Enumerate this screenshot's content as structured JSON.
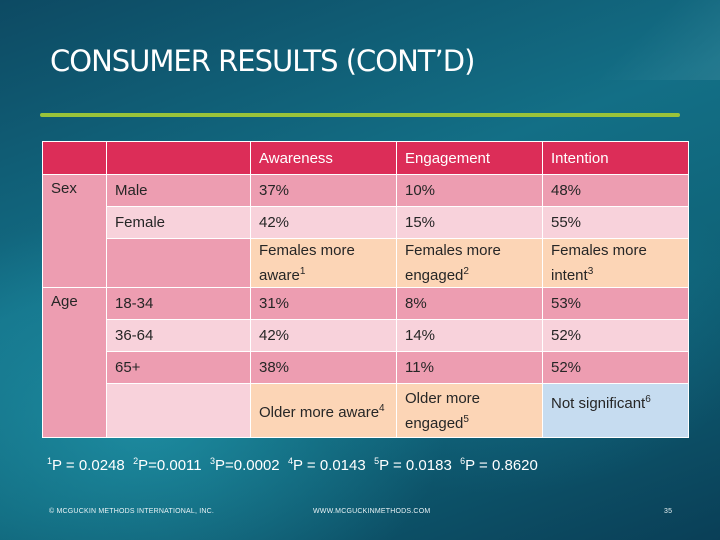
{
  "title": "CONSUMER RESULTS (CONT’D)",
  "table": {
    "headers": [
      "Awareness",
      "Engagement",
      "Intention"
    ],
    "sex": {
      "label": "Sex",
      "rows": [
        {
          "group": "Male",
          "values": [
            "37%",
            "10%",
            "48%"
          ]
        },
        {
          "group": "Female",
          "values": [
            "42%",
            "15%",
            "55%"
          ]
        }
      ],
      "summary": [
        {
          "text": "Females more aware",
          "sup": "1"
        },
        {
          "text": "Females more engaged",
          "sup": "2"
        },
        {
          "text": "Females more intent",
          "sup": "3"
        }
      ]
    },
    "age": {
      "label": "Age",
      "rows": [
        {
          "group": "18-34",
          "values": [
            "31%",
            "8%",
            "53%"
          ]
        },
        {
          "group": "36-64",
          "values": [
            "42%",
            "14%",
            "52%"
          ]
        },
        {
          "group": "65+",
          "values": [
            "38%",
            "11%",
            "52%"
          ]
        }
      ],
      "summary": [
        {
          "text": "Older more aware",
          "sup": "4"
        },
        {
          "text": "Older more engaged",
          "sup": "5"
        },
        {
          "text": "Not significant",
          "sup": "6"
        }
      ]
    }
  },
  "pvalues": [
    {
      "sup": "1",
      "text": "P = 0.0248"
    },
    {
      "sup": "2",
      "text": "P=0.0011"
    },
    {
      "sup": "3",
      "text": "P=0.0002"
    },
    {
      "sup": "4",
      "text": "P = 0.0143"
    },
    {
      "sup": "5",
      "text": "P = 0.0183"
    },
    {
      "sup": "6",
      "text": "P = 0.8620"
    }
  ],
  "footer": {
    "copyright": "© MCGUCKIN METHODS INTERNATIONAL, INC.",
    "website": "WWW.MCGUCKINMETHODS.COM",
    "page_number": "35"
  },
  "colors": {
    "header_bg": "#dc2d58",
    "row_light": "#f8d2db",
    "row_mid": "#ed9db1",
    "summary_peach": "#fcd5b6",
    "summary_blue": "#c6dcf0",
    "rule": "#9ac33a"
  }
}
